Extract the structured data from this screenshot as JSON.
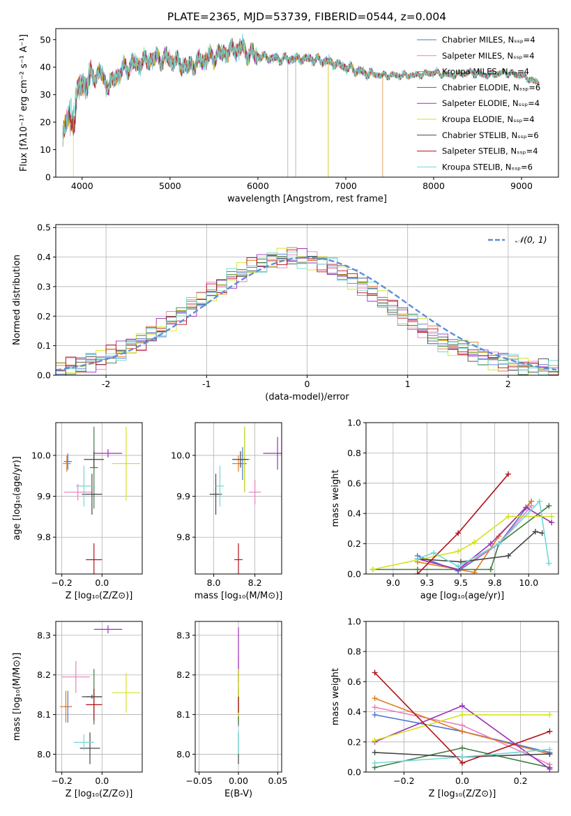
{
  "figure": {
    "title": "PLATE=2365, MJD=53739, FIBERID=0544, z=0.004",
    "series_colors": [
      "#4c72d0",
      "#e87fc0",
      "#e07b25",
      "#3d7a3d",
      "#9b2fb8",
      "#d4e21a",
      "#444444",
      "#b0121b",
      "#72d6d6"
    ]
  },
  "chart_data": [
    {
      "id": "spectrum",
      "type": "line",
      "xlabel": "wavelength [Angstrom, rest frame]",
      "ylabel": "Flux [fλ10⁻¹⁷ erg cm⁻² s⁻¹ A⁻¹]",
      "xlim": [
        3700,
        9420
      ],
      "ylim": [
        0,
        54
      ],
      "xticks": [
        4000,
        5000,
        6000,
        7000,
        8000,
        9000
      ],
      "yticks": [
        0,
        10,
        20,
        30,
        40,
        50
      ],
      "legend_position": "top-right",
      "series": [
        {
          "name": "Chabrier MILES, Nₛₛₚ=4"
        },
        {
          "name": "Salpeter MILES, Nₛₛₚ=4"
        },
        {
          "name": "Kroupa MILES, Nₛₛₚ=4"
        },
        {
          "name": "Chabrier ELODIE, Nₛₛₚ=6"
        },
        {
          "name": "Salpeter ELODIE, Nₛₛₚ=4"
        },
        {
          "name": "Kroupa ELODIE, Nₛₛₚ=4"
        },
        {
          "name": "Chabrier STELIB, Nₛₛₚ=6"
        },
        {
          "name": "Salpeter STELIB, Nₛₛₚ=4"
        },
        {
          "name": "Kroupa STELIB, Nₛₛₚ=6"
        }
      ],
      "continuum": [
        [
          3780,
          17
        ],
        [
          3850,
          22
        ],
        [
          3900,
          27
        ],
        [
          3950,
          31
        ],
        [
          4000,
          33
        ],
        [
          4100,
          36
        ],
        [
          4200,
          38
        ],
        [
          4300,
          33
        ],
        [
          4400,
          37
        ],
        [
          4500,
          40
        ],
        [
          4600,
          41
        ],
        [
          4800,
          43
        ],
        [
          5000,
          43
        ],
        [
          5200,
          40
        ],
        [
          5400,
          43
        ],
        [
          5600,
          45
        ],
        [
          5800,
          47
        ],
        [
          5900,
          45
        ],
        [
          6000,
          44
        ],
        [
          6200,
          43
        ],
        [
          6400,
          43
        ],
        [
          6600,
          43
        ],
        [
          6800,
          42
        ],
        [
          7000,
          40
        ],
        [
          7100,
          39
        ],
        [
          7200,
          38
        ],
        [
          7400,
          37
        ],
        [
          7600,
          37
        ],
        [
          7800,
          37
        ],
        [
          8000,
          38
        ],
        [
          8200,
          37
        ],
        [
          8400,
          38
        ],
        [
          8600,
          37
        ],
        [
          8800,
          38
        ],
        [
          9000,
          37
        ],
        [
          9200,
          34
        ]
      ],
      "dropouts": [
        {
          "x": 3900,
          "series": 5
        },
        {
          "x": 6340,
          "series": 6
        },
        {
          "x": 6430,
          "series": 6
        },
        {
          "x": 6800,
          "series": 2
        },
        {
          "x": 6800,
          "series": 5
        },
        {
          "x": 7420,
          "series": 2
        }
      ]
    },
    {
      "id": "residuals",
      "type": "histogram",
      "xlabel": "(data-model)/error",
      "ylabel": "Normed distribution",
      "xlim": [
        -2.5,
        2.5
      ],
      "ylim": [
        0,
        0.51
      ],
      "xticks": [
        -2,
        -1,
        0,
        1,
        2
      ],
      "yticks": [
        0.0,
        0.1,
        0.2,
        0.3,
        0.4,
        0.5
      ],
      "reference_label": "𝒩(0, 1)",
      "legend_position": "top-right",
      "grid": true
    },
    {
      "id": "age-vs-Z",
      "type": "errorbar",
      "xlabel": "Z [log₁₀(Z/Z⊙)]",
      "ylabel": "age  [log₁₀(age/yr)]",
      "xlim": [
        -0.23,
        0.2
      ],
      "ylim": [
        9.71,
        10.08
      ],
      "xticks": [
        -0.2,
        0.0
      ],
      "yticks": [
        9.8,
        9.9,
        10.0
      ],
      "points": [
        {
          "s": 0,
          "x": -0.17,
          "y": 9.985,
          "xe": 0.02,
          "ye": 0.02
        },
        {
          "s": 1,
          "x": -0.12,
          "y": 9.91,
          "xe": 0.07,
          "ye": 0.02
        },
        {
          "s": 2,
          "x": -0.175,
          "y": 9.98,
          "xe": 0.02,
          "ye": 0.02
        },
        {
          "s": 3,
          "x": -0.04,
          "y": 9.97,
          "xe": 0.02,
          "ye": 0.1
        },
        {
          "s": 4,
          "x": 0.03,
          "y": 10.005,
          "xe": 0.07,
          "ye": 0.01
        },
        {
          "s": 5,
          "x": 0.12,
          "y": 9.98,
          "xe": 0.07,
          "ye": 0.09
        },
        {
          "s": 6,
          "x": -0.04,
          "y": 9.99,
          "xe": 0.05,
          "ye": 0.02
        },
        {
          "s": 6,
          "x": -0.05,
          "y": 9.905,
          "xe": 0.05,
          "ye": 0.05
        },
        {
          "s": 7,
          "x": -0.04,
          "y": 9.745,
          "xe": 0.04,
          "ye": 0.04
        },
        {
          "s": 8,
          "x": -0.09,
          "y": 9.925,
          "xe": 0.04,
          "ye": 0.05
        }
      ]
    },
    {
      "id": "age-vs-mass",
      "type": "errorbar",
      "xlabel": "mass [log₁₀(M/M⊙)]",
      "ylabel": "",
      "xlim": [
        7.91,
        8.33
      ],
      "ylim": [
        9.71,
        10.08
      ],
      "xticks": [
        8.0,
        8.2
      ],
      "yticks": [
        9.8,
        9.9,
        10.0
      ],
      "points": [
        {
          "s": 0,
          "x": 8.14,
          "y": 9.98,
          "xe": 0.02,
          "ye": 0.04
        },
        {
          "s": 1,
          "x": 8.2,
          "y": 9.91,
          "xe": 0.03,
          "ye": 0.03
        },
        {
          "s": 2,
          "x": 8.12,
          "y": 9.98,
          "xe": 0.03,
          "ye": 0.02
        },
        {
          "s": 3,
          "x": 8.15,
          "y": 9.99,
          "xe": 0.02,
          "ye": 0.08
        },
        {
          "s": 4,
          "x": 8.31,
          "y": 10.005,
          "xe": 0.07,
          "ye": 0.04
        },
        {
          "s": 5,
          "x": 8.15,
          "y": 9.99,
          "xe": 0.03,
          "ye": 0.08
        },
        {
          "s": 6,
          "x": 8.13,
          "y": 9.99,
          "xe": 0.04,
          "ye": 0.02
        },
        {
          "s": 6,
          "x": 8.01,
          "y": 9.905,
          "xe": 0.03,
          "ye": 0.05
        },
        {
          "s": 7,
          "x": 8.12,
          "y": 9.745,
          "xe": 0.02,
          "ye": 0.04
        },
        {
          "s": 8,
          "x": 8.03,
          "y": 9.925,
          "xe": 0.02,
          "ye": 0.05
        }
      ]
    },
    {
      "id": "mass-weight-vs-age",
      "type": "line",
      "xlabel": "age  [log₁₀(age/yr)]",
      "ylabel": "mass weight",
      "xlim": [
        8.8,
        10.22
      ],
      "ylim": [
        0,
        1
      ],
      "xticks": [
        9.0,
        9.25,
        9.5,
        9.75,
        10.0
      ],
      "yticks": [
        0.0,
        0.2,
        0.4,
        0.6,
        0.8,
        1.0
      ],
      "grid": true,
      "series": [
        {
          "s": 0,
          "x": [
            9.18,
            9.48,
            9.78,
            10.02
          ],
          "y": [
            0.12,
            0.02,
            0.2,
            0.48
          ]
        },
        {
          "s": 1,
          "x": [
            9.18,
            9.48,
            9.78,
            10.02
          ],
          "y": [
            0.1,
            0.03,
            0.2,
            0.45
          ]
        },
        {
          "s": 2,
          "x": [
            9.18,
            9.6,
            9.78,
            10.02
          ],
          "y": [
            0.08,
            0.01,
            0.25,
            0.48
          ]
        },
        {
          "s": 3,
          "x": [
            8.85,
            9.18,
            9.48,
            9.72,
            9.78,
            10.15
          ],
          "y": [
            0.03,
            0.03,
            0.03,
            0.03,
            0.2,
            0.45
          ]
        },
        {
          "s": 4,
          "x": [
            9.18,
            9.48,
            9.72,
            9.98,
            10.17
          ],
          "y": [
            0.1,
            0.03,
            0.2,
            0.44,
            0.34
          ]
        },
        {
          "s": 5,
          "x": [
            8.85,
            9.48,
            9.6,
            9.85,
            10.17
          ],
          "y": [
            0.03,
            0.15,
            0.21,
            0.38,
            0.38
          ]
        },
        {
          "s": 6,
          "x": [
            9.18,
            9.5,
            9.85,
            10.05,
            10.1
          ],
          "y": [
            0.1,
            0.08,
            0.12,
            0.28,
            0.27
          ]
        },
        {
          "s": 7,
          "x": [
            9.18,
            9.48,
            9.85
          ],
          "y": [
            0.0,
            0.27,
            0.66
          ]
        },
        {
          "s": 8,
          "x": [
            9.18,
            9.3,
            9.48,
            9.78,
            10.08,
            10.15
          ],
          "y": [
            0.1,
            0.14,
            0.05,
            0.2,
            0.48,
            0.07
          ]
        }
      ]
    },
    {
      "id": "mass-vs-Z",
      "type": "errorbar",
      "xlabel": "Z [log₁₀(Z/Z⊙)]",
      "ylabel": "mass [log₁₀(M/M⊙)]",
      "xlim": [
        -0.23,
        0.2
      ],
      "ylim": [
        7.955,
        8.335
      ],
      "xticks": [
        -0.2,
        0.0
      ],
      "yticks": [
        8.0,
        8.1,
        8.2,
        8.3
      ],
      "points": [
        {
          "s": 0,
          "x": -0.17,
          "y": 8.12,
          "xe": 0.02,
          "ye": 0.04
        },
        {
          "s": 1,
          "x": -0.13,
          "y": 8.195,
          "xe": 0.07,
          "ye": 0.04
        },
        {
          "s": 2,
          "x": -0.18,
          "y": 8.12,
          "xe": 0.03,
          "ye": 0.04
        },
        {
          "s": 3,
          "x": -0.04,
          "y": 8.145,
          "xe": 0.04,
          "ye": 0.07
        },
        {
          "s": 4,
          "x": 0.03,
          "y": 8.315,
          "xe": 0.07,
          "ye": 0.01
        },
        {
          "s": 5,
          "x": 0.12,
          "y": 8.155,
          "xe": 0.07,
          "ye": 0.05
        },
        {
          "s": 6,
          "x": -0.05,
          "y": 8.145,
          "xe": 0.05,
          "ye": 0.005
        },
        {
          "s": 6,
          "x": -0.06,
          "y": 8.015,
          "xe": 0.05,
          "ye": 0.04
        },
        {
          "s": 7,
          "x": -0.04,
          "y": 8.125,
          "xe": 0.04,
          "ye": 0.04
        },
        {
          "s": 8,
          "x": -0.09,
          "y": 8.03,
          "xe": 0.05,
          "ye": 0.02
        }
      ]
    },
    {
      "id": "mass-vs-EBV",
      "type": "errorbar",
      "xlabel": "E(B-V)",
      "ylabel": "",
      "xlim": [
        -0.055,
        0.055
      ],
      "ylim": [
        7.955,
        8.335
      ],
      "xticks": [
        -0.05,
        0.0,
        0.05
      ],
      "yticks": [
        8.0,
        8.1,
        8.2,
        8.3
      ],
      "points": [
        {
          "s": 0,
          "x": 0,
          "y": 8.12,
          "xe": 0,
          "ye": 0.05
        },
        {
          "s": 1,
          "x": 0,
          "y": 8.2,
          "xe": 0,
          "ye": 0.05
        },
        {
          "s": 2,
          "x": 0,
          "y": 8.12,
          "xe": 0,
          "ye": 0.04
        },
        {
          "s": 3,
          "x": 0,
          "y": 8.145,
          "xe": 0,
          "ye": 0.07
        },
        {
          "s": 4,
          "x": 0,
          "y": 8.25,
          "xe": 0,
          "ye": 0.07
        },
        {
          "s": 5,
          "x": 0,
          "y": 8.155,
          "xe": 0,
          "ye": 0.06
        },
        {
          "s": 6,
          "x": 0,
          "y": 8.015,
          "xe": 0,
          "ye": 0.04
        },
        {
          "s": 7,
          "x": 0,
          "y": 8.125,
          "xe": 0,
          "ye": 0.02
        },
        {
          "s": 8,
          "x": 0,
          "y": 8.03,
          "xe": 0,
          "ye": 0.03
        }
      ]
    },
    {
      "id": "mass-weight-vs-Z",
      "type": "line",
      "xlabel": "Z [log₁₀(Z/Z⊙)]",
      "ylabel": "mass weight",
      "xlim": [
        -0.33,
        0.33
      ],
      "ylim": [
        0,
        1
      ],
      "xticks": [
        -0.2,
        0.0,
        0.2
      ],
      "yticks": [
        0.0,
        0.2,
        0.4,
        0.6,
        0.8,
        1.0
      ],
      "grid": true,
      "series": [
        {
          "s": 0,
          "x": [
            -0.3,
            0.0,
            0.3
          ],
          "y": [
            0.38,
            0.27,
            0.13
          ]
        },
        {
          "s": 1,
          "x": [
            -0.3,
            0.0,
            0.3
          ],
          "y": [
            0.43,
            0.31,
            0.05
          ]
        },
        {
          "s": 2,
          "x": [
            -0.3,
            0.0,
            0.3
          ],
          "y": [
            0.49,
            0.27,
            0.12
          ]
        },
        {
          "s": 3,
          "x": [
            -0.3,
            0.0,
            0.3
          ],
          "y": [
            0.03,
            0.16,
            0.03
          ]
        },
        {
          "s": 4,
          "x": [
            -0.3,
            0.0,
            0.3
          ],
          "y": [
            0.2,
            0.44,
            0.02
          ]
        },
        {
          "s": 5,
          "x": [
            -0.3,
            0.0,
            0.3
          ],
          "y": [
            0.21,
            0.38,
            0.38
          ]
        },
        {
          "s": 6,
          "x": [
            -0.3,
            0.0,
            0.3
          ],
          "y": [
            0.13,
            0.1,
            0.12
          ]
        },
        {
          "s": 7,
          "x": [
            -0.3,
            0.0,
            0.3
          ],
          "y": [
            0.66,
            0.06,
            0.27
          ]
        },
        {
          "s": 8,
          "x": [
            -0.3,
            0.0,
            0.3
          ],
          "y": [
            0.06,
            0.1,
            0.15
          ]
        }
      ]
    }
  ]
}
